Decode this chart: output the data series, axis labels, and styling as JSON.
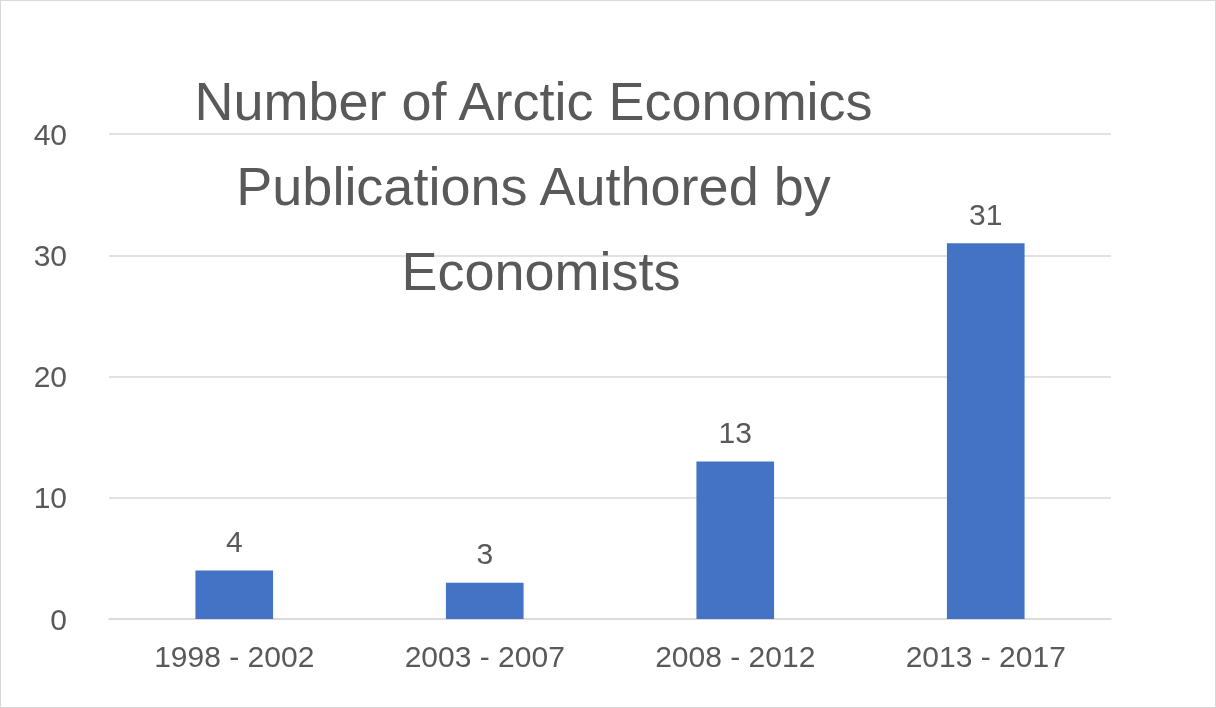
{
  "chart_data": {
    "type": "bar",
    "title": "Number of Arctic Economics Publications Authored by Economists",
    "categories": [
      "1998 - 2002",
      "2003 - 2007",
      "2008 - 2012",
      "2013 - 2017"
    ],
    "values": [
      4,
      3,
      13,
      31
    ],
    "color": "#4472c4",
    "ylim": [
      0,
      40
    ],
    "yticks": [
      0,
      10,
      20,
      30,
      40
    ],
    "grid": "y",
    "data_labels": true
  }
}
